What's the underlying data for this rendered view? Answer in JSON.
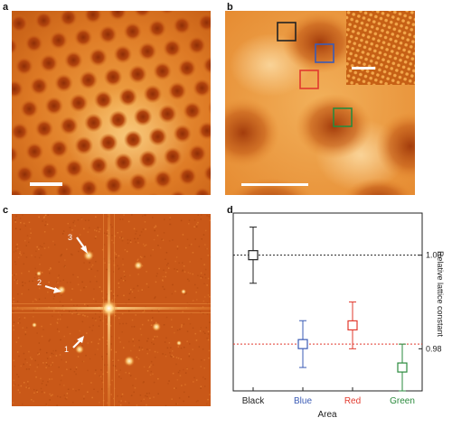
{
  "panels": {
    "a": {
      "letter": "a"
    },
    "b": {
      "letter": "b"
    },
    "c": {
      "letter": "c",
      "arrow_labels": [
        "3",
        "2",
        "1"
      ]
    },
    "d": {
      "letter": "d"
    }
  },
  "colors": {
    "black": "#222222",
    "blue": "#3b5bb5",
    "red": "#e23a2e",
    "green": "#2a8a3c",
    "stm_dark": "#a0380a",
    "stm_mid": "#e07c28",
    "stm_light": "#f7c978",
    "fft_bg": "#c95818",
    "fft_spot": "#fff4c8"
  },
  "chart_data": {
    "type": "scatter",
    "categories": [
      "Black",
      "Blue",
      "Red",
      "Green"
    ],
    "category_colors": [
      "#222222",
      "#3b5bb5",
      "#e23a2e",
      "#2a8a3c"
    ],
    "values": [
      1.0,
      0.981,
      0.985,
      0.976
    ],
    "error_bars": [
      0.006,
      0.005,
      0.005,
      0.005
    ],
    "xlabel": "Area",
    "ylabel": "Relative lattice constant",
    "yticks": [
      0.98,
      1.0
    ],
    "ytick_labels": [
      "0.98",
      "1.00"
    ],
    "ylim": [
      0.971,
      1.009
    ],
    "reference_lines": [
      {
        "value": 1.0,
        "color": "#222222",
        "style": "dotted"
      },
      {
        "value": 0.981,
        "color": "#e23a2e",
        "style": "dotted"
      }
    ],
    "y_axis_side": "right",
    "grid": false
  }
}
